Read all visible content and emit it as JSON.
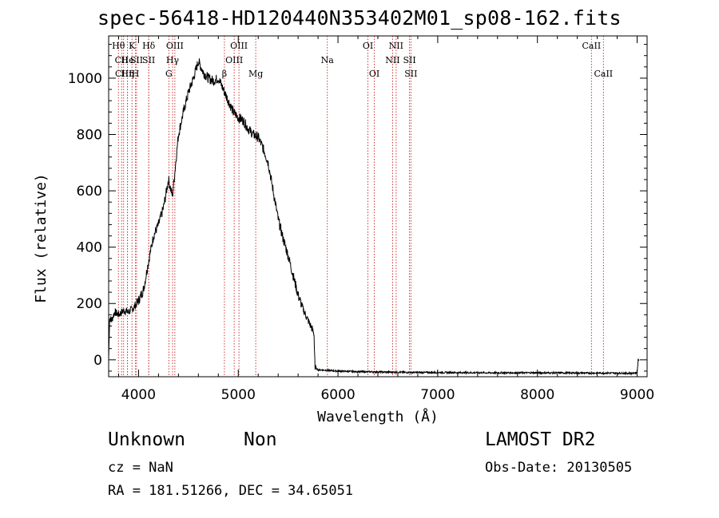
{
  "header": {
    "title": "spec-56418-HD120440N353402M01_sp08-162.fits"
  },
  "footer": {
    "object_type": "Unknown",
    "class": "Non",
    "survey": "LAMOST DR2",
    "redshift": "cz = NaN",
    "obs_date": "Obs-Date: 20130505",
    "coords": "RA = 181.51266, DEC =  34.65051"
  },
  "colors": {
    "line_marker": "#cc2222",
    "spectrum": "#000000"
  },
  "chart_data": {
    "type": "line",
    "xlabel": "Wavelength (Å)",
    "ylabel": "Flux (relative)",
    "xlim": [
      3700,
      9100
    ],
    "ylim": [
      -60,
      1150
    ],
    "xticks": [
      4000,
      5000,
      6000,
      7000,
      8000,
      9000
    ],
    "yticks": [
      0,
      200,
      400,
      600,
      800,
      1000
    ],
    "grid": false,
    "series": [
      {
        "x": [
          3700,
          3710,
          3730,
          3760,
          3800,
          3850,
          3900,
          3950,
          4000,
          4050,
          4100,
          4150,
          4200,
          4250,
          4300,
          4340,
          4400,
          4450,
          4500,
          4550,
          4600,
          4650,
          4700,
          4750,
          4800,
          4850,
          4900,
          4950,
          5000,
          5050,
          5100,
          5150,
          5200,
          5250,
          5300,
          5350,
          5400,
          5450,
          5500,
          5550,
          5600,
          5650,
          5700,
          5740,
          5760,
          5770,
          5800,
          6000,
          6200,
          6400,
          6600,
          6800,
          7000,
          7500,
          8000,
          8500,
          8800,
          8950,
          9000,
          9010,
          9020
        ],
        "y": [
          0,
          150,
          140,
          170,
          160,
          175,
          170,
          185,
          210,
          250,
          350,
          440,
          480,
          540,
          640,
          580,
          800,
          880,
          950,
          1000,
          1060,
          1020,
          1000,
          990,
          1000,
          960,
          920,
          880,
          860,
          850,
          820,
          800,
          790,
          750,
          700,
          600,
          500,
          430,
          370,
          300,
          230,
          180,
          140,
          110,
          90,
          -30,
          -35,
          -40,
          -42,
          -43,
          -44,
          -45,
          -45,
          -46,
          -46,
          -47,
          -47,
          -48,
          -45,
          0,
          0
        ]
      }
    ],
    "line_markers": [
      {
        "label": "Hθ",
        "x": 3798,
        "row": 0
      },
      {
        "label": "CII",
        "x": 3830,
        "row": 1
      },
      {
        "label": "CIII",
        "x": 3850,
        "row": 2
      },
      {
        "label": "He",
        "x": 3889,
        "row": 1
      },
      {
        "label": "Hη",
        "x": 3889,
        "row": 2
      },
      {
        "label": "K",
        "x": 3934,
        "row": 0
      },
      {
        "label": "H",
        "x": 3969,
        "row": 2
      },
      {
        "label": "SII",
        "x": 3980,
        "row": 1
      },
      {
        "label": "Hδ",
        "x": 4102,
        "row": 0
      },
      {
        "label": "SII",
        "x": 4102,
        "row": 1
      },
      {
        "label": "OIII",
        "x": 4364,
        "row": 0
      },
      {
        "label": "Hγ",
        "x": 4341,
        "row": 1
      },
      {
        "label": "G",
        "x": 4304,
        "row": 2
      },
      {
        "label": "OIII",
        "x": 5007,
        "row": 0
      },
      {
        "label": "OIII",
        "x": 4959,
        "row": 1
      },
      {
        "label": "β",
        "x": 4861,
        "row": 2
      },
      {
        "label": "Mg",
        "x": 5175,
        "row": 2
      },
      {
        "label": "Na",
        "x": 5893,
        "row": 1
      },
      {
        "label": "OI",
        "x": 6300,
        "row": 0
      },
      {
        "label": "OI",
        "x": 6364,
        "row": 2
      },
      {
        "label": "NII",
        "x": 6583,
        "row": 0
      },
      {
        "label": "NII",
        "x": 6548,
        "row": 1
      },
      {
        "label": "SII",
        "x": 6717,
        "row": 1
      },
      {
        "label": "SII",
        "x": 6731,
        "row": 2
      },
      {
        "label": "CaII",
        "x": 8542,
        "row": 0
      },
      {
        "label": "CaII",
        "x": 8662,
        "row": 2
      }
    ]
  }
}
